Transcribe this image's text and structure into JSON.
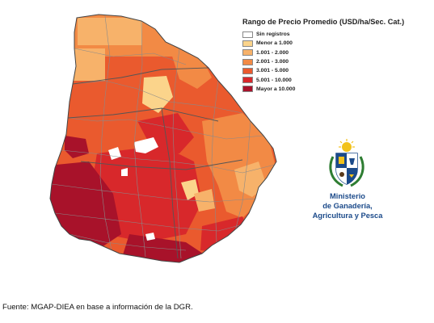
{
  "legend": {
    "title": "Rango de Precio Promedio (USD/ha/Sec. Cat.)",
    "items": [
      {
        "label": "Sin registros",
        "color": "#ffffff"
      },
      {
        "label": "Menor a 1.000",
        "color": "#fbd48b"
      },
      {
        "label": "1.001 - 2.000",
        "color": "#f7b26a"
      },
      {
        "label": "2.001 - 3.000",
        "color": "#f28a45"
      },
      {
        "label": "3.001 - 5.000",
        "color": "#ea5a2e"
      },
      {
        "label": "5.001 - 10.000",
        "color": "#d8282b"
      },
      {
        "label": "Mayor a 10.000",
        "color": "#a8122a"
      }
    ]
  },
  "ministry": {
    "line1": "Ministerio",
    "line2": "de Ganadería,",
    "line3": "Agricultura y Pesca"
  },
  "source": "Fuente: MGAP-DIEA en base a información de la DGR."
}
